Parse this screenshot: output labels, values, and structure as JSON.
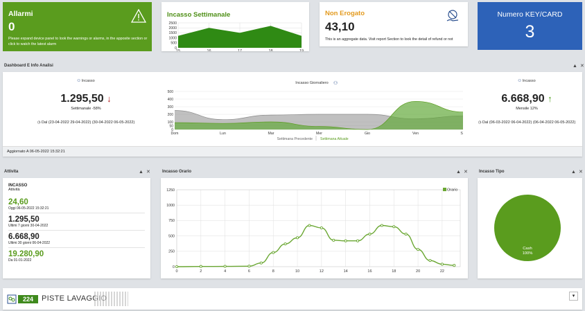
{
  "alarms": {
    "title": "Allarmi",
    "count": "0",
    "description": "Please expand device panel to look the warnings or alarms, in the apposite section or click to watch the latest alarm"
  },
  "weekly": {
    "title": "Incasso Settimanale"
  },
  "non_erogato": {
    "title": "Non Erogato",
    "value": "43,10",
    "description": "This is an aggregate data. Visit report Section to look the detail of refund or not"
  },
  "keycard": {
    "title": "Numero KEY/CARD",
    "value": "3"
  },
  "dashboard": {
    "title": "Dashboard E Info Analisi",
    "left": {
      "label": "Incasso",
      "value": "1.295,50",
      "sub": "Settimanale -58%",
      "range": "Dal (23-04-2022 29-04-2022) (30-04-2022 06-05-2022)"
    },
    "center": {
      "label": "Incasso Giornaliero",
      "legend_prev": "Settimana Precedente",
      "legend_curr": "Settimana Attuale"
    },
    "right": {
      "label": "Incasso",
      "value": "6.668,90",
      "sub": "Mensile 12%",
      "range": "Dal (06-03-2022 06-04-2022) (06-04-2022 06-05-2022)"
    },
    "updated": "Aggiornato A 06-05-2022 15:32:21"
  },
  "attivita": {
    "panel_title": "Attivita",
    "heading": "INCASSO",
    "subheading": "Attività",
    "rows": [
      {
        "value": "24,60",
        "label": "Oggi 06-05-2022 15:32:21"
      },
      {
        "value": "1.295,50",
        "label": "Ultimi 7 giorni 30-04-2022"
      },
      {
        "value": "6.668,90",
        "label": "Ultimi 30 giorni 06-04-2022"
      },
      {
        "value": "19.280,90",
        "label": "Da 01-01-2022"
      }
    ]
  },
  "hourly_panel": {
    "title": "Incasso Orario"
  },
  "tipo_panel": {
    "title": "Incasso Tipo"
  },
  "footer": {
    "count": "224",
    "label": "PISTE LAVAGGIO"
  },
  "controls": {
    "collapse": "▲",
    "close": "✕",
    "dropdown": "▾"
  },
  "colors": {
    "green": "#5a9c1e",
    "blue": "#2d62b8",
    "orange": "#e39a1e",
    "red": "#b21e1e"
  },
  "chart_data": [
    {
      "type": "area",
      "x": [
        15,
        16,
        17,
        18,
        19
      ],
      "values": [
        1200,
        2000,
        1500,
        2200,
        1200
      ],
      "ylim": [
        0,
        2500
      ],
      "yticks": [
        0,
        500,
        1000,
        1500,
        2000,
        2500
      ],
      "grid": true
    },
    {
      "type": "area",
      "title": "Incasso Giornaliero",
      "categories": [
        "Dom",
        "Lun",
        "Mar",
        "Mer",
        "Gio",
        "Ven",
        "Sab"
      ],
      "series": [
        {
          "name": "Settimana Precedente",
          "values": [
            250,
            130,
            190,
            200,
            200,
            140,
            180
          ]
        },
        {
          "name": "Settimana Attuale",
          "values": [
            90,
            80,
            100,
            40,
            0,
            370,
            230
          ]
        }
      ],
      "ylim": [
        0,
        500
      ],
      "yticks": [
        0,
        50,
        100,
        200,
        300,
        400,
        500
      ],
      "legend": "bottom"
    },
    {
      "type": "line",
      "title": "Incasso Orario",
      "x": [
        0,
        2,
        4,
        6,
        7,
        8,
        9,
        10,
        11,
        12,
        13,
        14,
        15,
        16,
        17,
        18,
        19,
        20,
        21,
        22,
        23
      ],
      "series": [
        {
          "name": "Orario",
          "values": [
            0,
            3,
            5,
            8,
            60,
            230,
            370,
            470,
            670,
            630,
            430,
            420,
            420,
            530,
            670,
            650,
            530,
            280,
            100,
            40,
            20
          ]
        }
      ],
      "ylim": [
        0,
        1250
      ],
      "yticks": [
        0,
        250,
        500,
        750,
        1000,
        1250
      ],
      "xticks": [
        0,
        2,
        4,
        6,
        8,
        10,
        12,
        14,
        16,
        18,
        20,
        22
      ],
      "legend": "top-right",
      "grid": true
    },
    {
      "type": "pie",
      "slices": [
        {
          "name": "Cash",
          "value": 100,
          "label": "100%"
        }
      ]
    }
  ]
}
